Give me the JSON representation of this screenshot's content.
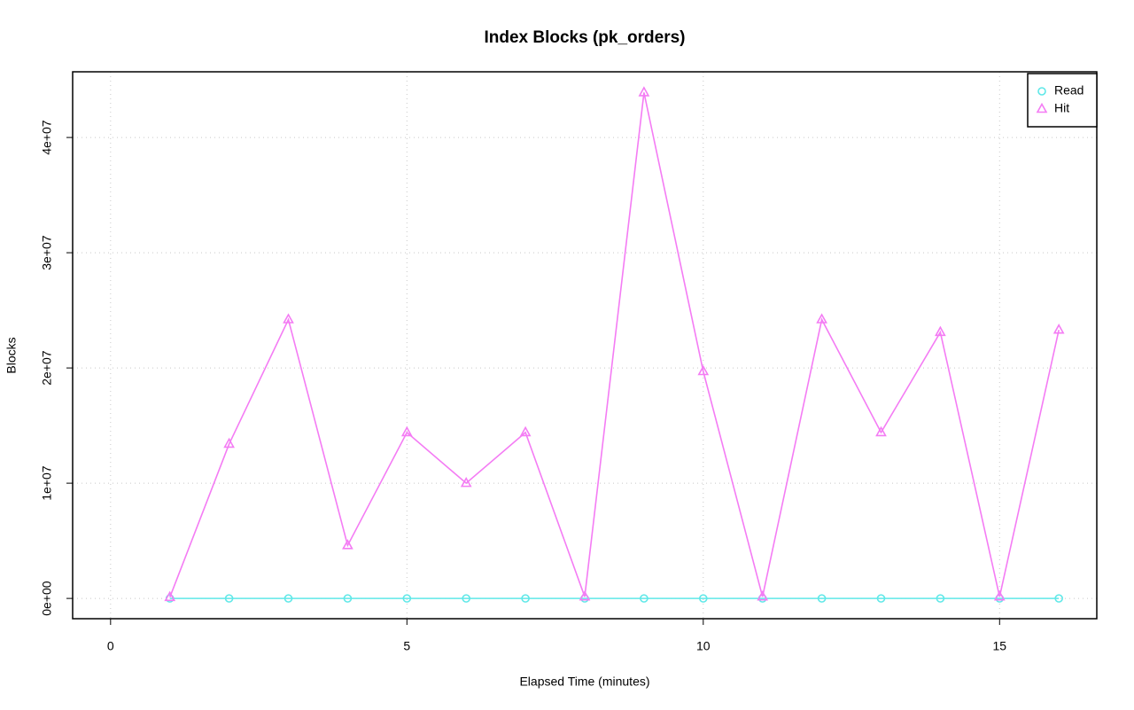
{
  "chart_data": {
    "type": "line",
    "title": "Index Blocks (pk_orders)",
    "xlabel": "Elapsed Time (minutes)",
    "ylabel": "Blocks",
    "x": [
      1,
      2,
      3,
      4,
      5,
      6,
      7,
      8,
      9,
      10,
      11,
      12,
      13,
      14,
      15,
      16
    ],
    "series": [
      {
        "name": "Read",
        "color": "#5fe8e8",
        "marker": "circle",
        "values": [
          0,
          0,
          0,
          0,
          0,
          0,
          0,
          0,
          0,
          0,
          0,
          0,
          0,
          0,
          0,
          0
        ]
      },
      {
        "name": "Hit",
        "color": "#f47cf4",
        "marker": "triangle",
        "values": [
          100000,
          13400000,
          24200000,
          4600000,
          14400000,
          10000000,
          14400000,
          150000,
          43900000,
          19700000,
          150000,
          24200000,
          14400000,
          23100000,
          150000,
          23300000
        ]
      }
    ],
    "xlim": [
      -0.64,
      16.64
    ],
    "xticks": [
      0,
      5,
      10,
      15
    ],
    "ylim": [
      -1760000,
      45700000
    ],
    "yticks": [
      {
        "value": 0,
        "label": "0e+00"
      },
      {
        "value": 10000000,
        "label": "1e+07"
      },
      {
        "value": 20000000,
        "label": "2e+07"
      },
      {
        "value": 30000000,
        "label": "3e+07"
      },
      {
        "value": 40000000,
        "label": "4e+07"
      }
    ],
    "grid": true,
    "legend": "top-right"
  }
}
